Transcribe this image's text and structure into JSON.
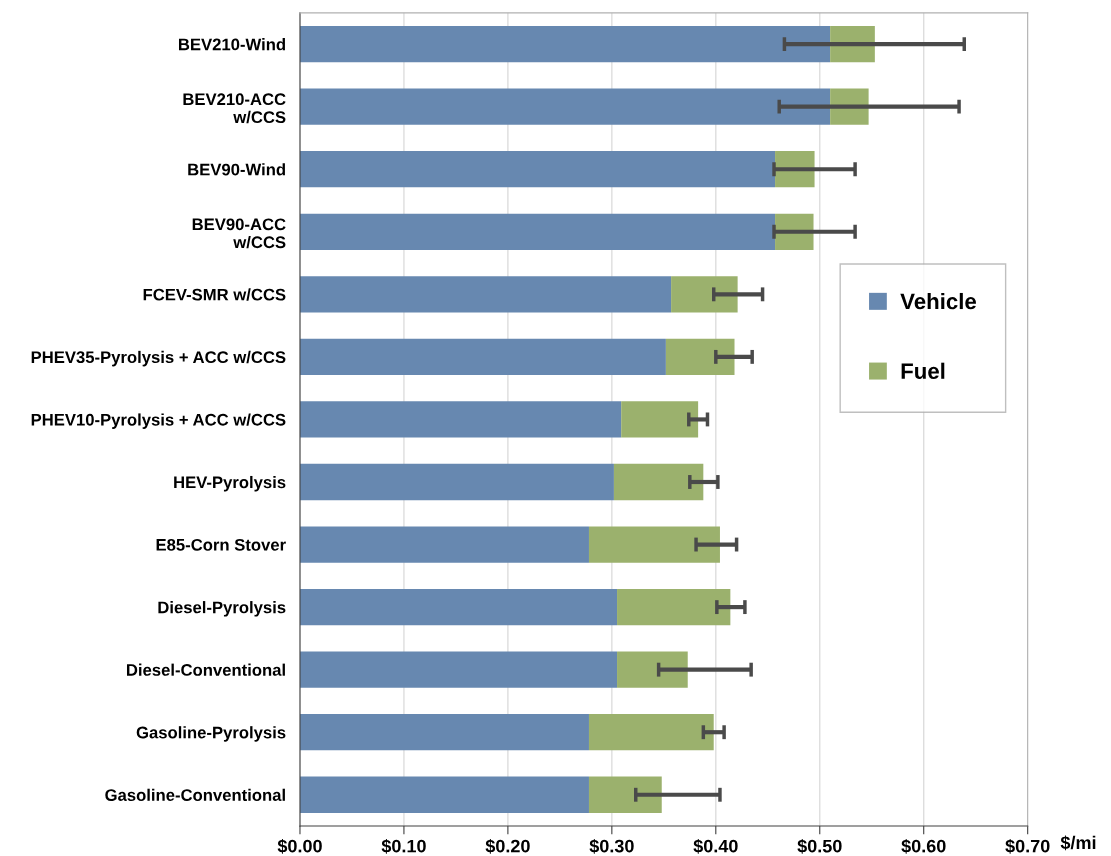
{
  "chart_data": {
    "type": "bar",
    "orientation": "horizontal",
    "stacked": true,
    "xlabel": "$/mi",
    "categories": [
      "BEV210-Wind",
      "BEV210-ACC\nw/CCS",
      "BEV90-Wind",
      "BEV90-ACC\nw/CCS",
      "FCEV-SMR w/CCS",
      "PHEV35-Pyrolysis + ACC w/CCS",
      "PHEV10-Pyrolysis + ACC w/CCS",
      "HEV-Pyrolysis",
      "E85-Corn Stover",
      "Diesel-Pyrolysis",
      "Diesel-Conventional",
      "Gasoline-Pyrolysis",
      "Gasoline-Conventional"
    ],
    "series": [
      {
        "name": "Vehicle",
        "color": "#6788b0",
        "values": [
          0.51,
          0.51,
          0.457,
          0.457,
          0.357,
          0.352,
          0.309,
          0.302,
          0.278,
          0.305,
          0.305,
          0.278,
          0.278
        ]
      },
      {
        "name": "Fuel",
        "color": "#9bb16d",
        "values": [
          0.043,
          0.037,
          0.038,
          0.037,
          0.064,
          0.066,
          0.074,
          0.086,
          0.126,
          0.109,
          0.068,
          0.12,
          0.07
        ],
        "errors": [
          [
            0.466,
            0.639
          ],
          [
            0.461,
            0.634
          ],
          [
            0.456,
            0.534
          ],
          [
            0.456,
            0.534
          ],
          [
            0.398,
            0.445
          ],
          [
            0.4,
            0.435
          ],
          [
            0.374,
            0.392
          ],
          [
            0.375,
            0.402
          ],
          [
            0.381,
            0.42
          ],
          [
            0.401,
            0.428
          ],
          [
            0.345,
            0.434
          ],
          [
            0.388,
            0.408
          ],
          [
            0.323,
            0.404
          ]
        ]
      }
    ],
    "xlim": [
      0,
      0.7
    ],
    "xticks": [
      {
        "value": 0,
        "label": "$0.00"
      },
      {
        "value": 0.1,
        "label": "$0.10"
      },
      {
        "value": 0.2,
        "label": "$0.20"
      },
      {
        "value": 0.3,
        "label": "$0.30"
      },
      {
        "value": 0.4,
        "label": "$0.40"
      },
      {
        "value": 0.5,
        "label": "$0.50"
      },
      {
        "value": 0.6,
        "label": "$0.60"
      },
      {
        "value": 0.7,
        "label": "$0.70"
      }
    ],
    "grid": "x",
    "legend": "right"
  }
}
